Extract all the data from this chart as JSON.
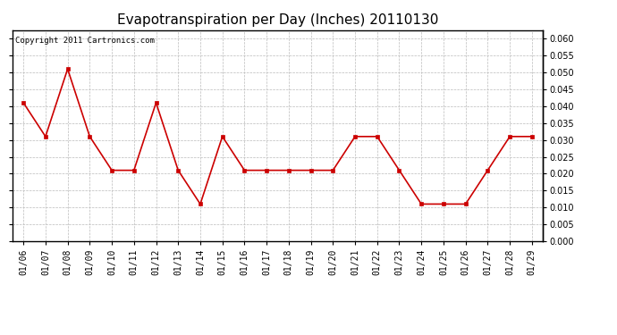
{
  "title": "Evapotranspiration per Day (Inches) 20110130",
  "copyright": "Copyright 2011 Cartronics.com",
  "dates": [
    "01/06",
    "01/07",
    "01/08",
    "01/09",
    "01/10",
    "01/11",
    "01/12",
    "01/13",
    "01/14",
    "01/15",
    "01/16",
    "01/17",
    "01/18",
    "01/19",
    "01/20",
    "01/21",
    "01/22",
    "01/23",
    "01/24",
    "01/25",
    "01/26",
    "01/27",
    "01/28",
    "01/29"
  ],
  "values": [
    0.041,
    0.031,
    0.051,
    0.031,
    0.021,
    0.021,
    0.041,
    0.021,
    0.011,
    0.031,
    0.021,
    0.021,
    0.021,
    0.021,
    0.021,
    0.031,
    0.031,
    0.021,
    0.011,
    0.011,
    0.011,
    0.021,
    0.031,
    0.031
  ],
  "line_color": "#cc0000",
  "marker": "s",
  "marker_size": 3,
  "ylim": [
    0.0,
    0.0625
  ],
  "yticks": [
    0.0,
    0.005,
    0.01,
    0.015,
    0.02,
    0.025,
    0.03,
    0.035,
    0.04,
    0.045,
    0.05,
    0.055,
    0.06
  ],
  "background_color": "#ffffff",
  "grid_color": "#bbbbbb",
  "title_fontsize": 11,
  "copyright_fontsize": 6.5,
  "tick_fontsize": 7
}
